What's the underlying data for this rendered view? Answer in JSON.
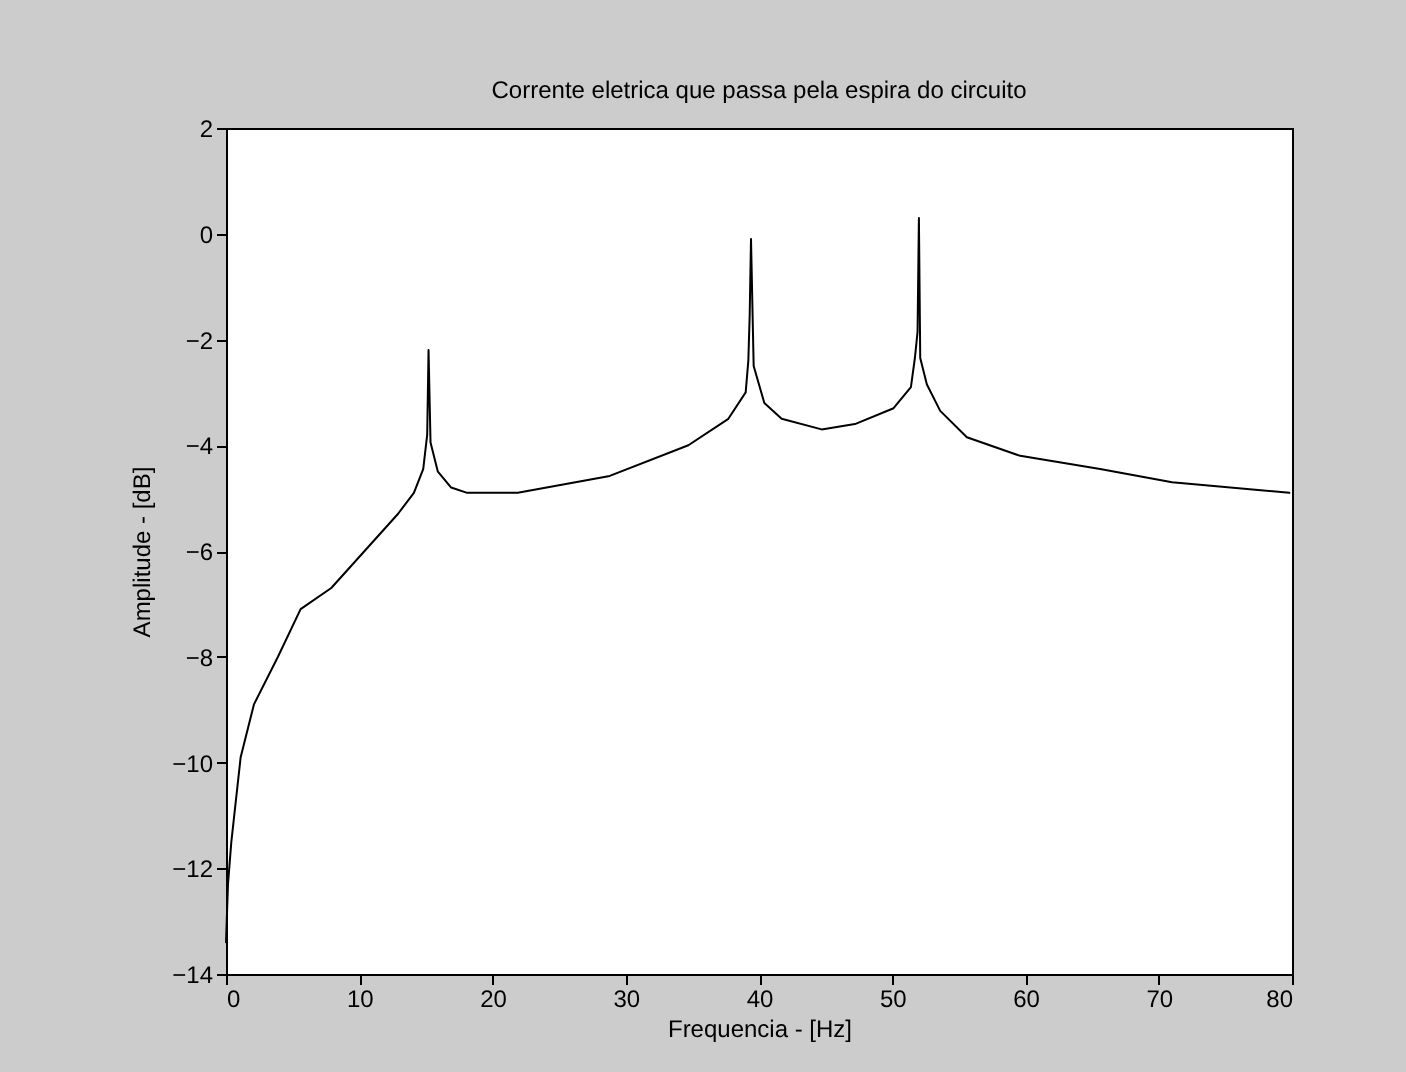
{
  "chart_data": {
    "type": "line",
    "title": "Corrente eletrica que passa pela espira do circuito",
    "xlabel": "Frequencia - [Hz]",
    "ylabel": "Amplitude - [dB]",
    "x": [
      0,
      0.15,
      0.4,
      1.1,
      2.1,
      3.9,
      5.6,
      7.9,
      10.4,
      12.9,
      14.1,
      14.8,
      15.1,
      15.2,
      15.35,
      15.9,
      16.9,
      18.1,
      21.9,
      28.8,
      34.7,
      37.7,
      39.0,
      39.2,
      39.3,
      39.4,
      39.6,
      40.4,
      41.7,
      44.7,
      47.2,
      50.1,
      51.4,
      51.7,
      51.9,
      52.0,
      52.1,
      52.6,
      53.6,
      55.6,
      59.6,
      65.6,
      71.0,
      79.8
    ],
    "series": [
      {
        "color": "#000000",
        "values": [
          -13.4,
          -12.3,
          -11.5,
          -9.9,
          -8.9,
          -8.0,
          -7.1,
          -6.7,
          -6.0,
          -5.3,
          -4.9,
          -4.45,
          -3.8,
          -2.2,
          -3.95,
          -4.5,
          -4.8,
          -4.9,
          -4.9,
          -4.58,
          -4.0,
          -3.5,
          -3.0,
          -2.4,
          -1.55,
          -0.1,
          -2.5,
          -3.2,
          -3.5,
          -3.7,
          -3.6,
          -3.3,
          -2.9,
          -2.35,
          -1.85,
          0.3,
          -2.35,
          -2.85,
          -3.35,
          -3.85,
          -4.2,
          -4.45,
          -4.7,
          -4.9
        ]
      }
    ],
    "xlim": [
      0,
      80
    ],
    "xticks": [
      0,
      10,
      20,
      30,
      40,
      50,
      60,
      70,
      80
    ],
    "ylim": [
      -14,
      2
    ],
    "yticks": [
      -14,
      -12,
      -10,
      -8,
      -6,
      -4,
      -2,
      0,
      2
    ],
    "grid": false,
    "legend": false,
    "line_style": "solid",
    "marker": "none"
  }
}
